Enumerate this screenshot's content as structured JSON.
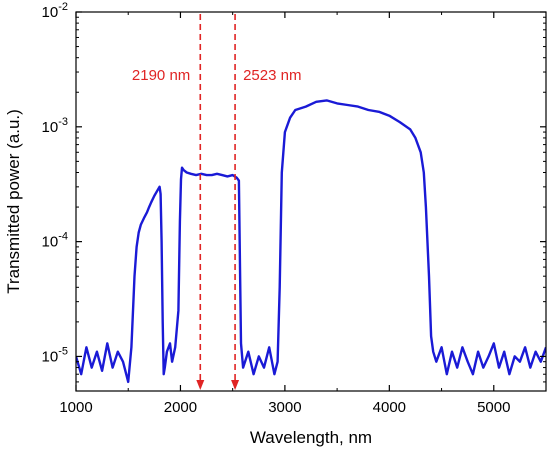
{
  "chart_data": {
    "type": "line",
    "title": "",
    "xlabel": "Wavelength, nm",
    "ylabel": "Transmitted power (a.u.)",
    "x_range": [
      1000,
      5500
    ],
    "y_range": [
      5e-06,
      0.01
    ],
    "y_scale": "log",
    "grid": false,
    "x_ticks": [
      1000,
      2000,
      3000,
      4000,
      5000
    ],
    "x_tick_labels": [
      "1000",
      "2000",
      "3000",
      "4000",
      "5000"
    ],
    "y_ticks": [
      1e-05,
      0.0001,
      0.001,
      0.01
    ],
    "y_tick_labels": [
      {
        "base": "10",
        "exp": "-5"
      },
      {
        "base": "10",
        "exp": "-4"
      },
      {
        "base": "10",
        "exp": "-3"
      },
      {
        "base": "10",
        "exp": "-2"
      }
    ],
    "series": [
      {
        "color": "#1a1ad6",
        "x": [
          1000,
          1050,
          1100,
          1150,
          1200,
          1250,
          1300,
          1350,
          1400,
          1450,
          1500,
          1530,
          1550,
          1560,
          1580,
          1600,
          1620,
          1650,
          1680,
          1700,
          1720,
          1750,
          1780,
          1800,
          1810,
          1820,
          1830,
          1840,
          1850,
          1870,
          1900,
          1920,
          1950,
          1980,
          1995,
          2005,
          2015,
          2030,
          2060,
          2100,
          2150,
          2200,
          2250,
          2300,
          2350,
          2400,
          2450,
          2500,
          2540,
          2560,
          2570,
          2580,
          2600,
          2650,
          2700,
          2750,
          2800,
          2850,
          2900,
          2930,
          2950,
          2970,
          3000,
          3050,
          3100,
          3200,
          3300,
          3400,
          3500,
          3600,
          3700,
          3800,
          3900,
          4000,
          4100,
          4200,
          4250,
          4300,
          4330,
          4350,
          4380,
          4400,
          4420,
          4450,
          4500,
          4550,
          4600,
          4650,
          4700,
          4750,
          4800,
          4850,
          4900,
          4950,
          5000,
          5050,
          5100,
          5150,
          5200,
          5250,
          5300,
          5350,
          5400,
          5450,
          5500
        ],
        "y": [
          1e-05,
          7e-06,
          1.2e-05,
          8e-06,
          1.1e-05,
          7.5e-06,
          1.3e-05,
          8e-06,
          1.1e-05,
          9e-06,
          6e-06,
          1.2e-05,
          3e-05,
          5e-05,
          9e-05,
          0.00012,
          0.00014,
          0.00016,
          0.00018,
          0.0002,
          0.00022,
          0.00025,
          0.00028,
          0.0003,
          0.00026,
          0.0001,
          2e-05,
          7e-06,
          8e-06,
          1.1e-05,
          1.3e-05,
          9e-06,
          1.2e-05,
          2.5e-05,
          0.00015,
          0.00035,
          0.00044,
          0.00042,
          0.0004,
          0.00039,
          0.00038,
          0.00039,
          0.00038,
          0.00038,
          0.00039,
          0.00038,
          0.00037,
          0.00038,
          0.00036,
          0.00034,
          6e-05,
          1.3e-05,
          8e-06,
          1.1e-05,
          7e-06,
          1e-05,
          8e-06,
          1.2e-05,
          7e-06,
          9e-06,
          4e-05,
          0.0004,
          0.0009,
          0.0012,
          0.0014,
          0.0015,
          0.00165,
          0.0017,
          0.0016,
          0.00155,
          0.0015,
          0.0014,
          0.00135,
          0.00125,
          0.0011,
          0.00095,
          0.0008,
          0.0006,
          0.0004,
          0.0002,
          5e-05,
          1.5e-05,
          1.1e-05,
          9e-06,
          1.2e-05,
          7e-06,
          1.1e-05,
          8e-06,
          1.2e-05,
          9e-06,
          7e-06,
          1.1e-05,
          8e-06,
          1e-05,
          1.3e-05,
          8e-06,
          1.1e-05,
          7e-06,
          1e-05,
          9e-06,
          1.2e-05,
          8e-06,
          1.1e-05,
          9e-06,
          1.2e-05
        ]
      }
    ],
    "annotations": [
      {
        "text": "2190 nm",
        "x": 2190,
        "color": "#e02424",
        "style": "dashed-arrow",
        "label_side": "left"
      },
      {
        "text": "2523 nm",
        "x": 2523,
        "color": "#e02424",
        "style": "dashed-arrow",
        "label_side": "right"
      }
    ]
  }
}
